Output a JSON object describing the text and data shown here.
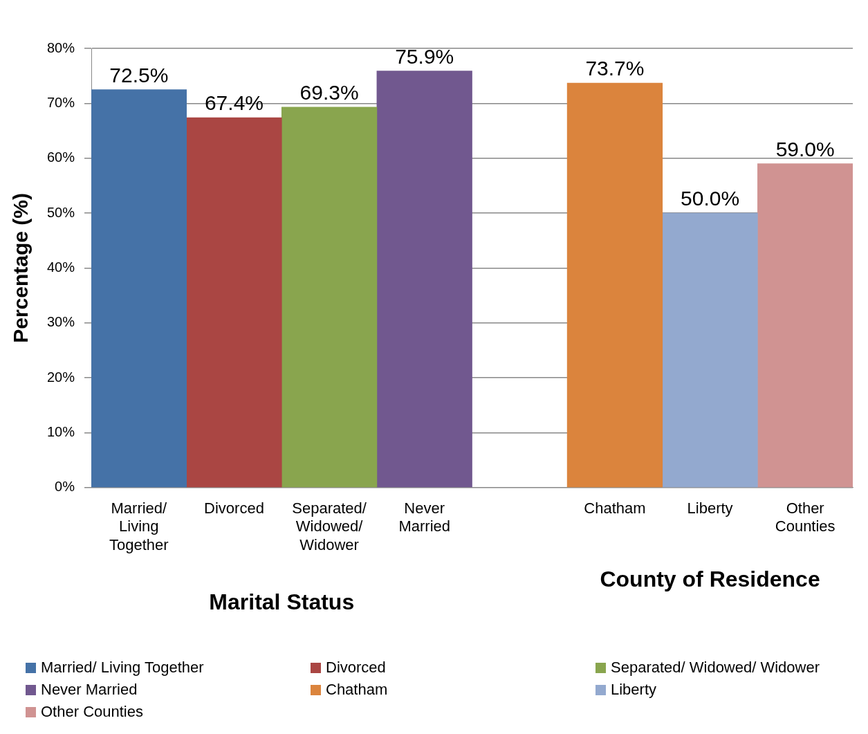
{
  "chart_data": {
    "type": "bar",
    "ylabel": "Percentage (%)",
    "categories": [
      "Married/ Living Together",
      "Divorced",
      "Separated/ Widowed/ Widower",
      "Never Married",
      null,
      "Chatham",
      "Liberty",
      "Other Counties"
    ],
    "series": [
      {
        "name": "Married/ Living Together",
        "color": "#4572a7",
        "values": [
          72.5,
          null,
          null,
          null,
          null,
          null,
          null,
          null
        ],
        "value_labels": [
          "72.5%",
          null,
          null,
          null,
          null,
          null,
          null,
          null
        ]
      },
      {
        "name": "Divorced",
        "color": "#aa4643",
        "values": [
          null,
          67.4,
          null,
          null,
          null,
          null,
          null,
          null
        ],
        "value_labels": [
          null,
          "67.4%",
          null,
          null,
          null,
          null,
          null,
          null
        ]
      },
      {
        "name": "Separated/ Widowed/ Widower",
        "color": "#89a54e",
        "values": [
          null,
          null,
          69.3,
          null,
          null,
          null,
          null,
          null
        ],
        "value_labels": [
          null,
          null,
          "69.3%",
          null,
          null,
          null,
          null,
          null
        ]
      },
      {
        "name": "Never Married",
        "color": "#71588f",
        "values": [
          null,
          null,
          null,
          75.9,
          null,
          null,
          null,
          null
        ],
        "value_labels": [
          null,
          null,
          null,
          "75.9%",
          null,
          null,
          null,
          null
        ]
      },
      {
        "name": "Chatham",
        "color": "#db843d",
        "values": [
          null,
          null,
          null,
          null,
          null,
          73.7,
          null,
          null
        ],
        "value_labels": [
          null,
          null,
          null,
          null,
          null,
          "73.7%",
          null,
          null
        ]
      },
      {
        "name": "Liberty",
        "color": "#93a9cf",
        "values": [
          null,
          null,
          null,
          null,
          null,
          null,
          50.0,
          null
        ],
        "value_labels": [
          null,
          null,
          null,
          null,
          null,
          null,
          "50.0%",
          null
        ]
      },
      {
        "name": "Other Counties",
        "color": "#d09392",
        "values": [
          null,
          null,
          null,
          null,
          null,
          null,
          null,
          59.0
        ],
        "value_labels": [
          null,
          null,
          null,
          null,
          null,
          null,
          null,
          "59.0%"
        ]
      }
    ],
    "ylim": [
      0,
      80
    ],
    "yticks": [
      {
        "value": 0,
        "label": "0%"
      },
      {
        "value": 10,
        "label": "10%"
      },
      {
        "value": 20,
        "label": "20%"
      },
      {
        "value": 30,
        "label": "30%"
      },
      {
        "value": 40,
        "label": "40%"
      },
      {
        "value": 50,
        "label": "50%"
      },
      {
        "value": 60,
        "label": "60%"
      },
      {
        "value": 70,
        "label": "70%"
      },
      {
        "value": 80,
        "label": "80%"
      }
    ],
    "grid": "y",
    "legend": "bottom",
    "annotations": [
      "Marital Status",
      "County of Residence"
    ]
  }
}
